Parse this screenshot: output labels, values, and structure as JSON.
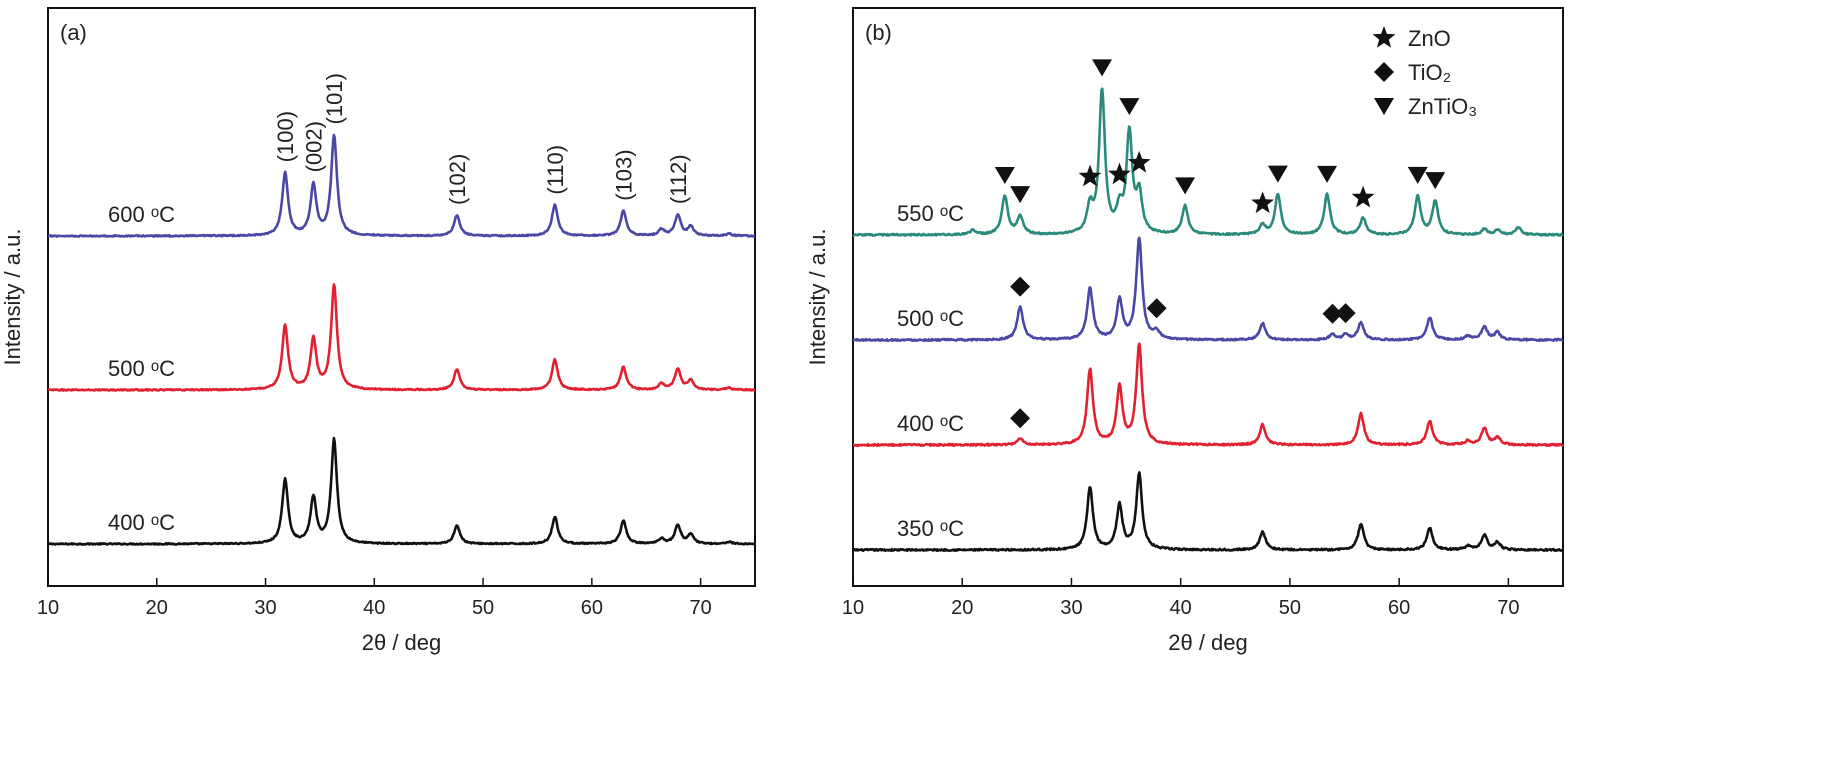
{
  "chart_data": [
    {
      "panel": "a",
      "type": "line",
      "panel_label": "(a)",
      "xlabel": "2θ / deg",
      "ylabel": "Intensity / a.u.",
      "xlim": [
        10,
        75
      ],
      "xticks": [
        10,
        20,
        30,
        40,
        50,
        60,
        70
      ],
      "yticks": "none",
      "grid": false,
      "peak_width": 0.32,
      "series": [
        {
          "name": "400 ᵒC",
          "color": "#111111",
          "offset": 0,
          "noise": 0.012,
          "peaks": [
            [
              31.8,
              0.62
            ],
            [
              34.4,
              0.44
            ],
            [
              36.3,
              1.0
            ],
            [
              47.6,
              0.18
            ],
            [
              56.6,
              0.26
            ],
            [
              62.9,
              0.22
            ],
            [
              66.4,
              0.05
            ],
            [
              67.9,
              0.18
            ],
            [
              69.1,
              0.09
            ],
            [
              72.6,
              0.02
            ]
          ]
        },
        {
          "name": "500 ᵒC",
          "color": "#e0212f",
          "offset": 1,
          "noise": 0.012,
          "peaks": [
            [
              31.8,
              0.62
            ],
            [
              34.4,
              0.48
            ],
            [
              36.3,
              1.0
            ],
            [
              47.6,
              0.2
            ],
            [
              56.6,
              0.29
            ],
            [
              62.9,
              0.22
            ],
            [
              66.4,
              0.06
            ],
            [
              67.9,
              0.2
            ],
            [
              69.1,
              0.09
            ],
            [
              72.6,
              0.02
            ]
          ]
        },
        {
          "name": "600 ᵒC",
          "color": "#4b47a4",
          "offset": 2,
          "noise": 0.012,
          "peaks": [
            [
              31.8,
              0.6
            ],
            [
              34.4,
              0.48
            ],
            [
              36.3,
              0.96
            ],
            [
              47.6,
              0.2
            ],
            [
              56.6,
              0.3
            ],
            [
              62.9,
              0.24
            ],
            [
              66.4,
              0.06
            ],
            [
              67.9,
              0.2
            ],
            [
              69.1,
              0.09
            ],
            [
              72.6,
              0.02
            ]
          ]
        }
      ],
      "peak_labels": [
        {
          "x": 31.8,
          "text": "(100)"
        },
        {
          "x": 34.4,
          "text": "(002)"
        },
        {
          "x": 36.3,
          "text": "(101)"
        },
        {
          "x": 47.6,
          "text": "(102)"
        },
        {
          "x": 56.6,
          "text": "(110)"
        },
        {
          "x": 62.9,
          "text": "(103)"
        },
        {
          "x": 67.9,
          "text": "(112)"
        }
      ]
    },
    {
      "panel": "b",
      "type": "line",
      "panel_label": "(b)",
      "xlabel": "2θ / deg",
      "ylabel": "Intensity / a.u.",
      "xlim": [
        10,
        75
      ],
      "xticks": [
        10,
        20,
        30,
        40,
        50,
        60,
        70
      ],
      "yticks": "none",
      "grid": false,
      "peak_width": 0.32,
      "legend_position": "top-right",
      "legend": [
        {
          "marker": "star",
          "text": "ZnO"
        },
        {
          "marker": "diamond",
          "text": "TiO₂"
        },
        {
          "marker": "triangle-down",
          "text": "ZnTiO₃"
        }
      ],
      "series": [
        {
          "name": "350 ᵒC",
          "color": "#111111",
          "offset": 0,
          "noise": 0.018,
          "peaks": [
            [
              31.7,
              0.68
            ],
            [
              34.4,
              0.48
            ],
            [
              36.2,
              0.82
            ],
            [
              47.5,
              0.2
            ],
            [
              56.5,
              0.28
            ],
            [
              62.8,
              0.24
            ],
            [
              66.3,
              0.04
            ],
            [
              67.8,
              0.16
            ],
            [
              69.0,
              0.08
            ]
          ]
        },
        {
          "name": "400 ᵒC",
          "color": "#e0212f",
          "offset": 1,
          "noise": 0.018,
          "peaks": [
            [
              25.3,
              0.07
            ],
            [
              31.7,
              0.82
            ],
            [
              34.4,
              0.62
            ],
            [
              36.2,
              1.08
            ],
            [
              47.5,
              0.22
            ],
            [
              56.5,
              0.34
            ],
            [
              62.8,
              0.26
            ],
            [
              66.3,
              0.04
            ],
            [
              67.8,
              0.18
            ],
            [
              69.0,
              0.08
            ]
          ]
        },
        {
          "name": "500 ᵒC",
          "color": "#4b47a4",
          "offset": 2,
          "noise": 0.018,
          "peaks": [
            [
              25.3,
              0.36
            ],
            [
              31.7,
              0.56
            ],
            [
              34.4,
              0.43
            ],
            [
              36.2,
              1.1
            ],
            [
              37.8,
              0.08
            ],
            [
              47.5,
              0.18
            ],
            [
              53.9,
              0.06
            ],
            [
              55.1,
              0.06
            ],
            [
              56.5,
              0.19
            ],
            [
              62.8,
              0.24
            ],
            [
              66.3,
              0.04
            ],
            [
              67.8,
              0.14
            ],
            [
              69.0,
              0.08
            ]
          ]
        },
        {
          "name": "550 ᵒC",
          "color": "#2a8a7c",
          "offset": 3,
          "noise": 0.018,
          "peaks": [
            [
              21.0,
              0.05
            ],
            [
              23.9,
              0.42
            ],
            [
              25.3,
              0.2
            ],
            [
              31.7,
              0.28
            ],
            [
              32.8,
              1.55
            ],
            [
              34.4,
              0.24
            ],
            [
              35.3,
              1.08
            ],
            [
              36.2,
              0.42
            ],
            [
              40.4,
              0.31
            ],
            [
              47.5,
              0.1
            ],
            [
              48.9,
              0.44
            ],
            [
              53.4,
              0.44
            ],
            [
              56.7,
              0.18
            ],
            [
              61.7,
              0.42
            ],
            [
              63.3,
              0.36
            ],
            [
              67.8,
              0.06
            ],
            [
              69.0,
              0.05
            ],
            [
              70.9,
              0.08
            ]
          ]
        }
      ],
      "markers": [
        {
          "series_index": 2,
          "x": 25.3,
          "shape": "diamond"
        },
        {
          "series_index": 2,
          "x": 37.8,
          "shape": "diamond"
        },
        {
          "series_index": 2,
          "x": 53.9,
          "shape": "diamond"
        },
        {
          "series_index": 2,
          "x": 55.1,
          "shape": "diamond"
        },
        {
          "series_index": 1,
          "x": 25.3,
          "shape": "diamond"
        },
        {
          "series_index": 3,
          "x": 23.9,
          "shape": "triangle-down"
        },
        {
          "series_index": 3,
          "x": 25.3,
          "shape": "triangle-down"
        },
        {
          "series_index": 3,
          "x": 31.7,
          "shape": "star"
        },
        {
          "series_index": 3,
          "x": 32.8,
          "shape": "triangle-down"
        },
        {
          "series_index": 3,
          "x": 34.4,
          "shape": "star"
        },
        {
          "series_index": 3,
          "x": 35.3,
          "shape": "triangle-down"
        },
        {
          "series_index": 3,
          "x": 36.2,
          "shape": "star"
        },
        {
          "series_index": 3,
          "x": 40.4,
          "shape": "triangle-down"
        },
        {
          "series_index": 3,
          "x": 47.5,
          "shape": "star"
        },
        {
          "series_index": 3,
          "x": 48.9,
          "shape": "triangle-down"
        },
        {
          "series_index": 3,
          "x": 53.4,
          "shape": "triangle-down"
        },
        {
          "series_index": 3,
          "x": 56.7,
          "shape": "star"
        },
        {
          "series_index": 3,
          "x": 61.7,
          "shape": "triangle-down"
        },
        {
          "series_index": 3,
          "x": 63.3,
          "shape": "triangle-down"
        }
      ]
    }
  ]
}
